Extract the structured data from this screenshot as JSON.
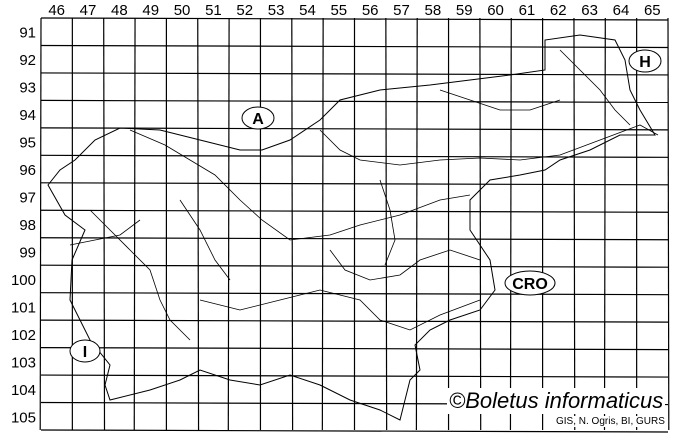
{
  "map": {
    "columns": [
      "46",
      "47",
      "48",
      "49",
      "50",
      "51",
      "52",
      "53",
      "54",
      "55",
      "56",
      "57",
      "58",
      "59",
      "60",
      "61",
      "62",
      "63",
      "64",
      "65"
    ],
    "rows": [
      "91",
      "92",
      "93",
      "94",
      "95",
      "96",
      "97",
      "98",
      "99",
      "100",
      "101",
      "102",
      "103",
      "104",
      "105"
    ],
    "regions": [
      {
        "label": "A"
      },
      {
        "label": "H"
      },
      {
        "label": "CRO"
      },
      {
        "label": "I"
      }
    ],
    "copyright": "©Boletus informaticus",
    "source": "GIS, N. Ogris, BI, GURS"
  }
}
